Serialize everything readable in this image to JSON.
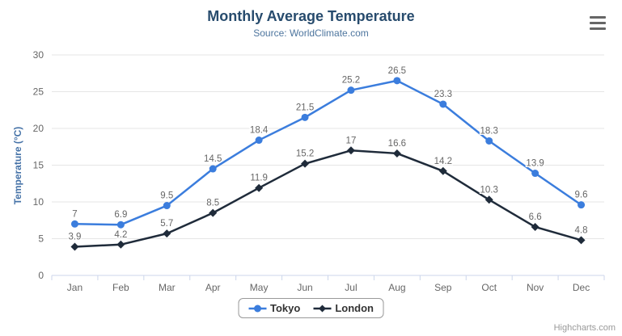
{
  "header": {
    "title": "Monthly Average Temperature",
    "subtitle": "Source: WorldClimate.com"
  },
  "export_menu": {
    "icon": "hamburger-icon"
  },
  "chart_data": {
    "type": "line",
    "title": "Monthly Average Temperature",
    "subtitle": "Source: WorldClimate.com",
    "categories": [
      "Jan",
      "Feb",
      "Mar",
      "Apr",
      "May",
      "Jun",
      "Jul",
      "Aug",
      "Sep",
      "Oct",
      "Nov",
      "Dec"
    ],
    "series": [
      {
        "name": "Tokyo",
        "marker": "circle",
        "color": "#3b7ddd",
        "values": [
          7,
          6.9,
          9.5,
          14.5,
          18.4,
          21.5,
          25.2,
          26.5,
          23.3,
          18.3,
          13.9,
          9.6
        ]
      },
      {
        "name": "London",
        "marker": "diamond",
        "color": "#1f2b3a",
        "values": [
          3.9,
          4.2,
          5.7,
          8.5,
          11.9,
          15.2,
          17,
          16.6,
          14.2,
          10.3,
          6.6,
          4.8
        ]
      }
    ],
    "xlabel": "",
    "ylabel": "Temperature (°C)",
    "ylim": [
      0,
      30
    ],
    "tick_interval": 5,
    "grid": true,
    "data_labels": true,
    "legend_position": "bottom"
  },
  "style": {
    "background": "#ffffff",
    "title_color": "#274b6d",
    "subtitle_color": "#4d759e",
    "axis_title_color": "#4572a7",
    "tick_label_color": "#666666",
    "data_label_color": "#666666",
    "grid_color": "#e6e6e6",
    "axis_line_color": "#ccd6eb",
    "menu_icon_color": "#666666",
    "legend_border_color": "#999999",
    "legend_text_color": "#333333",
    "credit_color": "#999999"
  },
  "credits": {
    "label": "Highcharts.com"
  }
}
